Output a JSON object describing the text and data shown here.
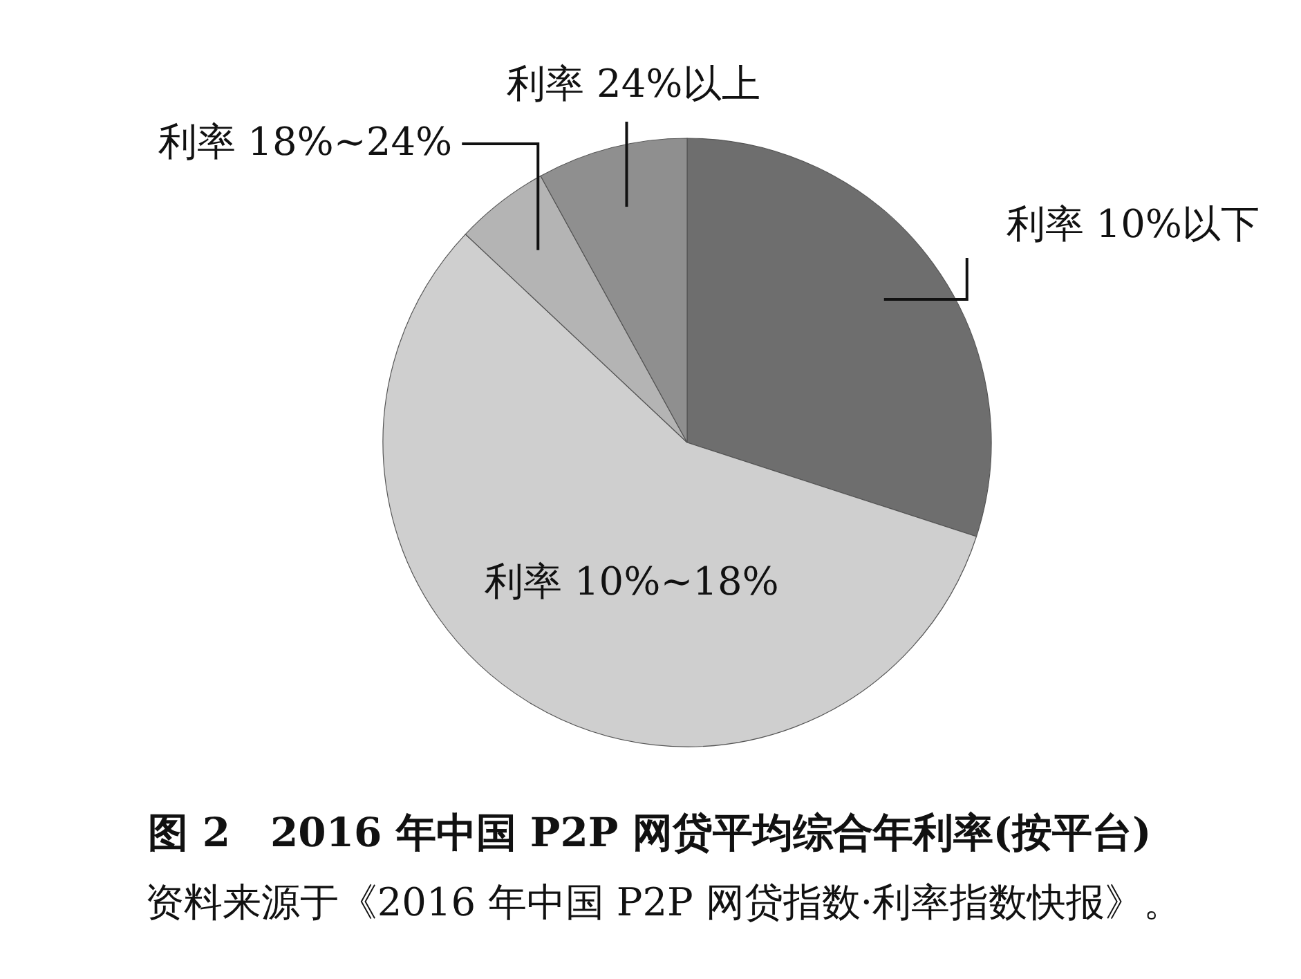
{
  "chart_data": {
    "type": "pie",
    "title": "图 2　2016 年中国 P2P 网贷平均综合年利率(按平台)",
    "annotations": [
      "资料来源于《2016 年中国 P2P 网贷指数·利率指数快报》。"
    ],
    "categories": [
      "利率 10%以下",
      "利率 10%~18%",
      "利率 18%~24%",
      "利率 24%以上"
    ],
    "values": [
      30,
      57,
      5,
      8
    ],
    "colors": [
      "#6e6e6e",
      "#cfcfcf",
      "#b4b4b4",
      "#8f8f8f"
    ]
  }
}
